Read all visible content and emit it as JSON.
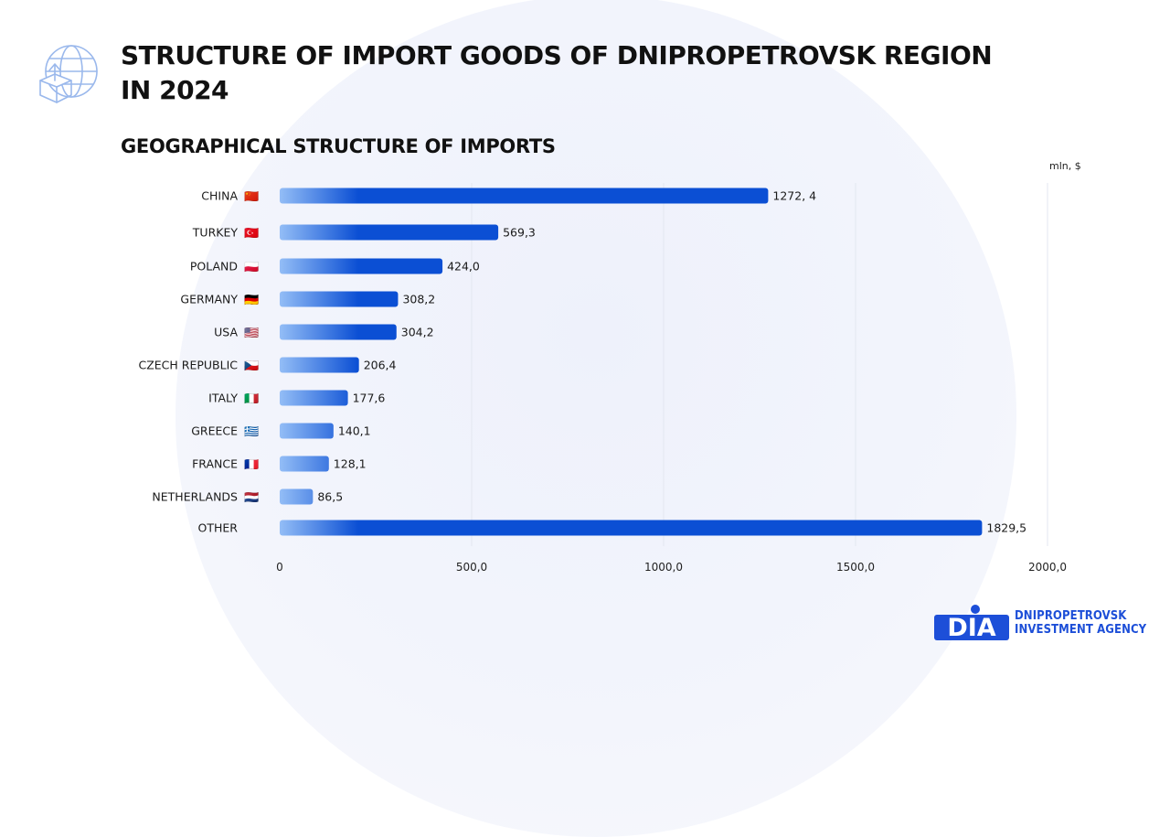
{
  "title": "STRUCTURE OF IMPORT GOODS OF DNIPROPETROVSK REGION IN 2024",
  "logo": {
    "mark": "DIA",
    "line1": "DNIPROPETROVSK",
    "line2": "INVESTMENT AGENCY"
  },
  "icons": [
    "globe-import-box-icon"
  ],
  "colors": {
    "bar_dark": "#0b4fd4",
    "bar_light": "#93bdf6",
    "logo_blue": "#1d4fd8",
    "background_circle": "#eef1fb"
  },
  "chart_data": {
    "type": "bar",
    "orientation": "horizontal",
    "title": "GEOGRAPHICAL STRUCTURE OF IMPORTS",
    "unit": "mln, $",
    "categories": [
      "CHINA",
      "TURKEY",
      "POLAND",
      "GERMANY",
      "USA",
      "CZECH REPUBLIC",
      "ITALY",
      "GREECE",
      "FRANCE",
      "NETHERLANDS",
      "OTHER"
    ],
    "flags": [
      "🇨🇳",
      "🇹🇷",
      "🇵🇱",
      "🇩🇪",
      "🇺🇸",
      "🇨🇿",
      "🇮🇹",
      "🇬🇷",
      "🇫🇷",
      "🇳🇱",
      ""
    ],
    "values": [
      1272.4,
      569.3,
      424.0,
      308.2,
      304.2,
      206.4,
      177.6,
      140.1,
      128.1,
      86.5,
      1829.5
    ],
    "value_labels": [
      "1272, 4",
      "569,3",
      "424,0",
      "308,2",
      "304,2",
      "206,4",
      "177,6",
      "140,1",
      "128,1",
      "86,5",
      "1829,5"
    ],
    "xlim": [
      0,
      2000
    ],
    "ticks": [
      0,
      500,
      1000,
      1500,
      2000
    ],
    "tick_labels": [
      "0",
      "500,0",
      "1000,0",
      "1500,0",
      "2000,0"
    ],
    "grid": true,
    "legend": "none"
  }
}
